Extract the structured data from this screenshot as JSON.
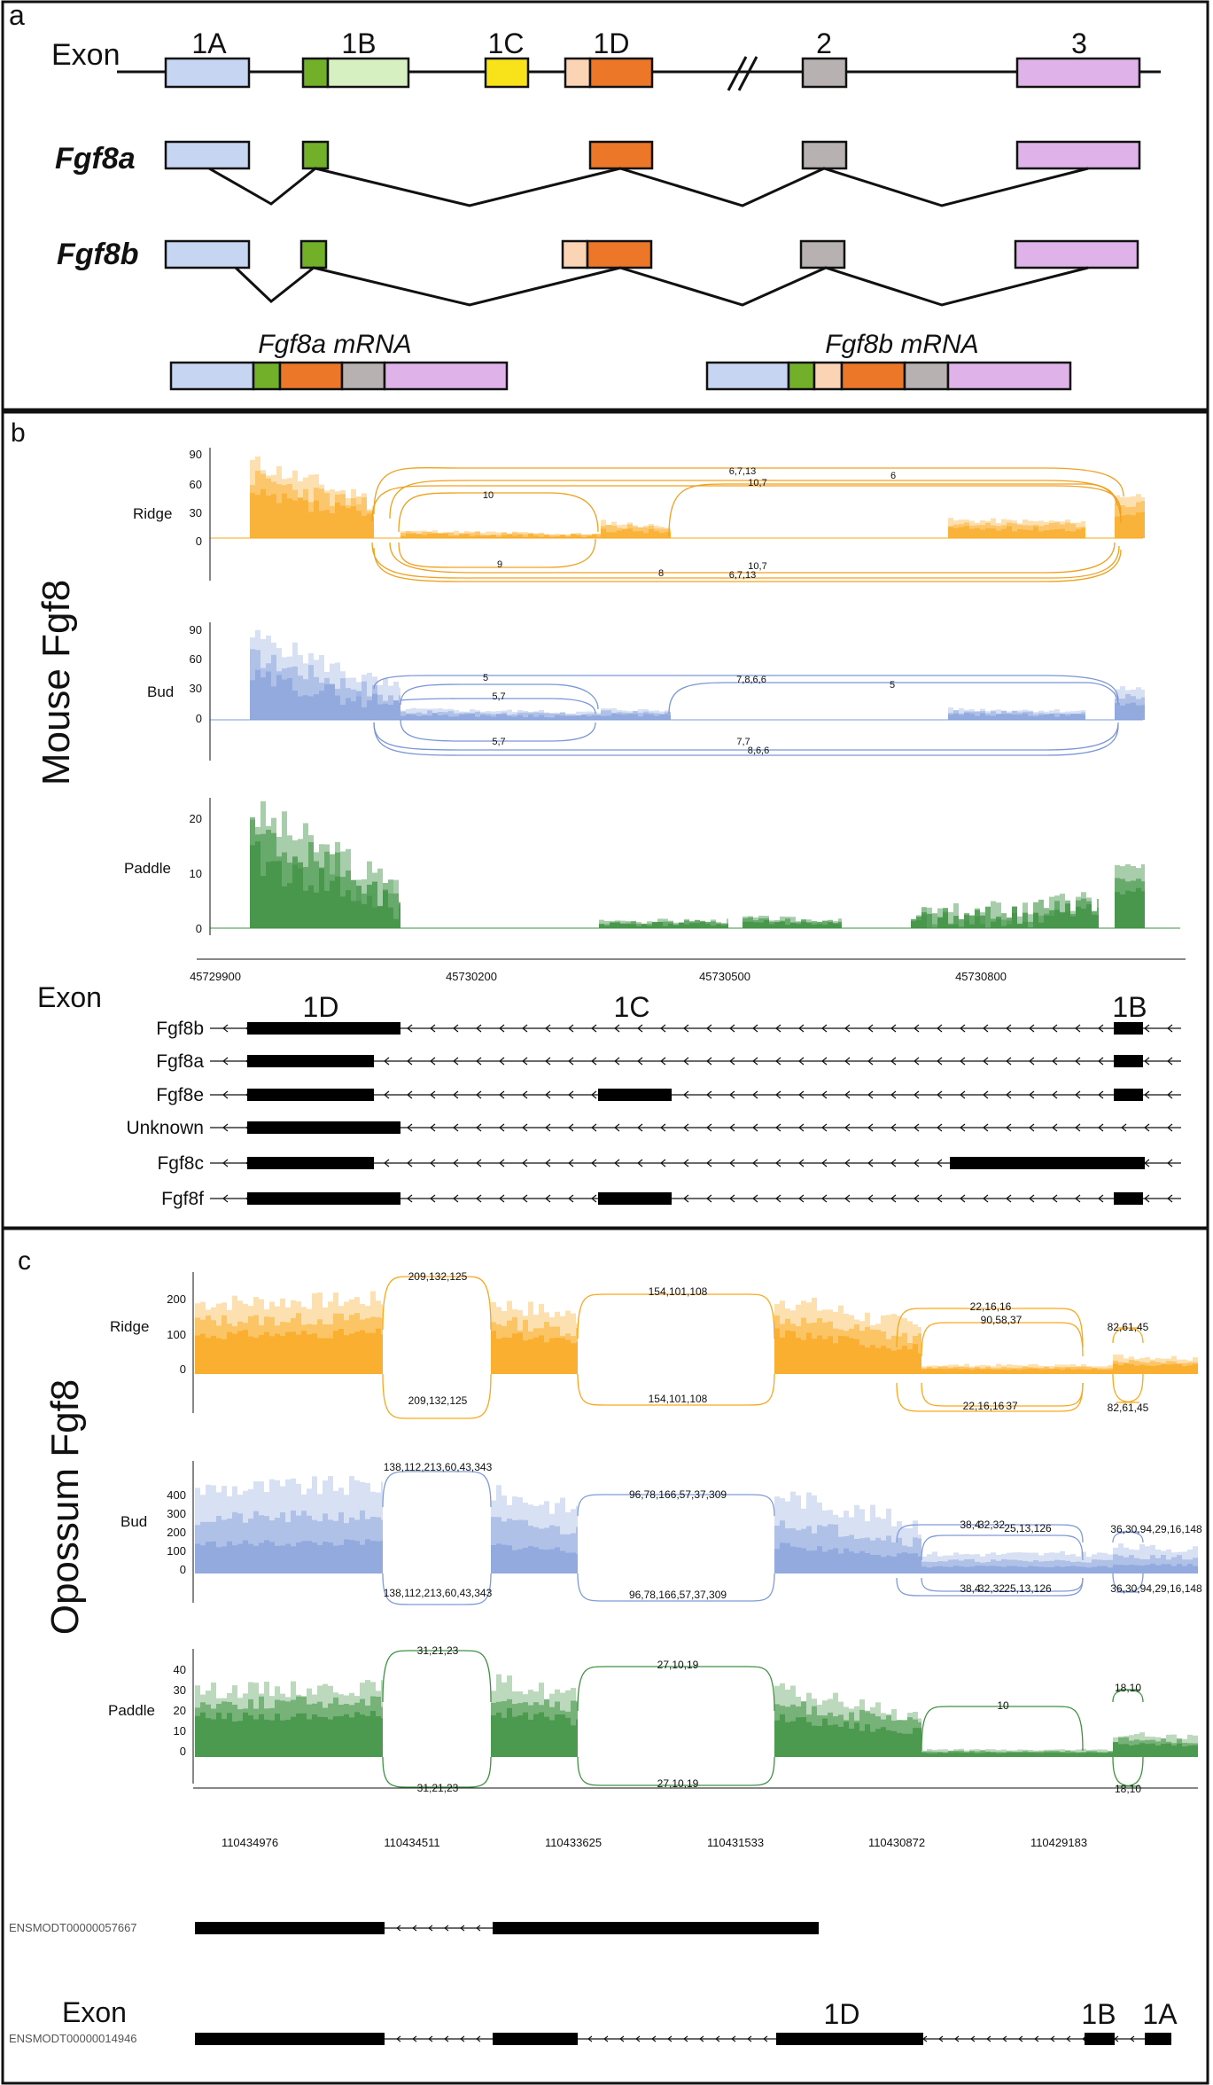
{
  "panel_a": {
    "label": "a",
    "exon_row_label": "Exon",
    "exon_names": [
      "1A",
      "1B",
      "1C",
      "1D",
      "2",
      "3"
    ],
    "isoform_a": "Fgf8a",
    "isoform_b": "Fgf8b",
    "mrna_a": "Fgf8a mRNA",
    "mrna_b": "Fgf8b mRNA",
    "colors": {
      "1A": "#c6d5f2",
      "1B_core": "#72b02a",
      "1B_ext": "#d7f0c2",
      "1C": "#f8e21a",
      "1D_ext": "#fbd3b5",
      "1D": "#ec7728",
      "2": "#b8b1b1",
      "3": "#dfb2ea"
    }
  },
  "panel_b": {
    "label": "b",
    "side_title": "Mouse Fgf8",
    "colors": {
      "ridge": "#f9a71b",
      "bud": "#7f9bd8",
      "paddle": "#3e9142"
    },
    "tracks": [
      {
        "name": "Ridge",
        "yticks": [
          "90",
          "60",
          "30",
          "0"
        ],
        "junctions_top": [
          "6,7,13",
          "10,7",
          "6",
          "10"
        ],
        "junctions_bottom": [
          "9",
          "10,7",
          "8",
          "6,7,13"
        ]
      },
      {
        "name": "Bud",
        "yticks": [
          "90",
          "60",
          "30",
          "0"
        ],
        "junctions_top": [
          "5",
          "7,8,6,6",
          "5",
          "5,7"
        ],
        "junctions_bottom": [
          "5,7",
          "7,7",
          "8,6,6"
        ]
      },
      {
        "name": "Paddle",
        "yticks": [
          "20",
          "10",
          "0"
        ],
        "junctions_top": [],
        "junctions_bottom": []
      }
    ],
    "xticks": [
      "45729900",
      "45730200",
      "45730500",
      "45730800"
    ],
    "exon_label": "Exon",
    "exon_names": [
      "1D",
      "1C",
      "1B"
    ],
    "transcripts": [
      "Fgf8b",
      "Fgf8a",
      "Fgf8e",
      "Unknown",
      "Fgf8c",
      "Fgf8f"
    ]
  },
  "panel_c": {
    "label": "c",
    "side_title": "Opossum Fgf8",
    "tracks": [
      {
        "name": "Ridge",
        "yticks": [
          "200",
          "100",
          "0"
        ],
        "junctions": [
          "209,132,125",
          "154,101,108",
          "22,16,16",
          "90,58,37",
          "82,61,45",
          "209,132,125",
          "154,101,108",
          "22,16,16",
          "37",
          "82,61,45"
        ]
      },
      {
        "name": "Bud",
        "yticks": [
          "400",
          "300",
          "200",
          "100",
          "0"
        ],
        "junctions": [
          "138,112,213,60,43,343",
          "96,78,166,57,37,309",
          "38,4",
          "32,32",
          "25,13,126",
          "36,30,94,29,16,148",
          "138,112,213,60,43,343",
          "96,78,166,57,37,309",
          "38,4",
          "32,32",
          "25,13,126",
          "36,30,94,29,16,148"
        ]
      },
      {
        "name": "Paddle",
        "yticks": [
          "40",
          "30",
          "20",
          "10",
          "0"
        ],
        "junctions": [
          "31,21,23",
          "27,10,19",
          "10",
          "18,10",
          "31,21,23",
          "27,10,19",
          "18,10"
        ]
      }
    ],
    "xticks": [
      "110434976",
      "110434511",
      "110433625",
      "110431533",
      "110430872",
      "110429183"
    ],
    "transcripts": [
      "ENSMODT00000057667",
      "ENSMODT00000014946"
    ],
    "exon_label": "Exon",
    "exon_names": [
      "1D",
      "1B",
      "1A"
    ]
  }
}
